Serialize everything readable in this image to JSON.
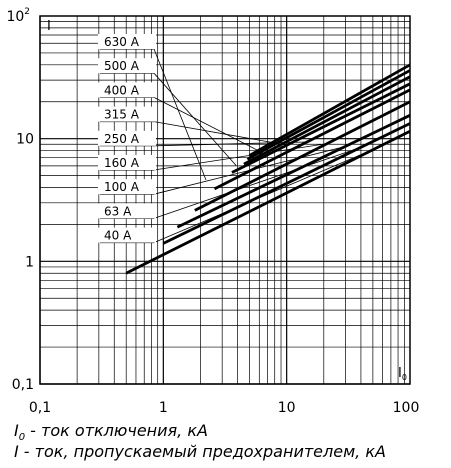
{
  "chart_data": {
    "type": "line",
    "x_scale": "log",
    "y_scale": "log",
    "xlim": [
      0.1,
      100
    ],
    "ylim": [
      0.1,
      100
    ],
    "grid": true,
    "x_tick_labels": [
      "0,1",
      "1",
      "10",
      "100"
    ],
    "y_tick_labels": [
      {
        "base": "10",
        "exp": "2",
        "value": 100
      },
      {
        "base": "10",
        "exp": "",
        "value": 10
      },
      {
        "base": "1",
        "exp": "",
        "value": 1
      },
      {
        "base": "0,1",
        "exp": "",
        "value": 0.1
      }
    ],
    "y_corner_label": "I",
    "x_corner_label": {
      "main": "I",
      "sub": "0"
    },
    "series": [
      {
        "name": "630 A",
        "x": [
          5,
          100
        ],
        "y": [
          7.3,
          40
        ]
      },
      {
        "name": "500 A",
        "x": [
          4.8,
          100
        ],
        "y": [
          6.8,
          36
        ]
      },
      {
        "name": "400 A",
        "x": [
          4.5,
          100
        ],
        "y": [
          6.2,
          32
        ]
      },
      {
        "name": "315 A",
        "x": [
          3.6,
          100
        ],
        "y": [
          5.3,
          28
        ]
      },
      {
        "name": "250 A",
        "x": [
          2.6,
          100
        ],
        "y": [
          3.9,
          25
        ]
      },
      {
        "name": "160 A",
        "x": [
          1.8,
          100
        ],
        "y": [
          2.6,
          20
        ]
      },
      {
        "name": "100 A",
        "x": [
          1.3,
          100
        ],
        "y": [
          1.9,
          15.5
        ]
      },
      {
        "name": "63 A",
        "x": [
          1.0,
          100
        ],
        "y": [
          1.4,
          13.3
        ]
      },
      {
        "name": "40 A",
        "x": [
          0.5,
          100
        ],
        "y": [
          0.8,
          11.5
        ]
      }
    ]
  },
  "captions": {
    "line1": {
      "symbol": "I",
      "sub": "0",
      "text": " - ток отключения, кА"
    },
    "line2": {
      "symbol": "I",
      "text": " - ток, пропускаемый предохранителем, кА"
    }
  }
}
